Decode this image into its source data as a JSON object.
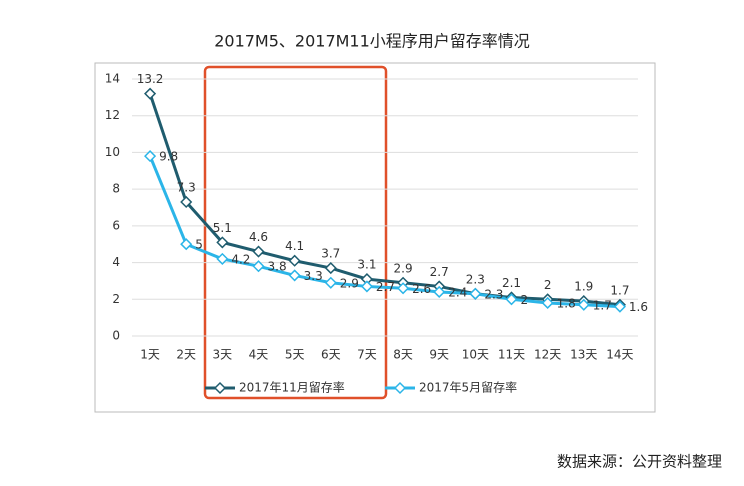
{
  "chart_data": {
    "type": "line",
    "title": "2017M5、2017M11小程序用户留存率情况",
    "categories": [
      "1天",
      "2天",
      "3天",
      "4天",
      "5天",
      "6天",
      "7天",
      "8天",
      "9天",
      "10天",
      "11天",
      "12天",
      "13天",
      "14天"
    ],
    "series": [
      {
        "name": "2017年11月留存率",
        "color": "#1f5c6e",
        "values": [
          13.2,
          7.3,
          5.1,
          4.6,
          4.1,
          3.7,
          3.1,
          2.9,
          2.7,
          2.3,
          2.1,
          2,
          1.9,
          1.7
        ]
      },
      {
        "name": "2017年5月留存率",
        "color": "#2bb5e8",
        "values": [
          9.8,
          5,
          4.2,
          3.8,
          3.3,
          2.9,
          2.7,
          2.6,
          2.4,
          2.3,
          2,
          1.8,
          1.7,
          1.6
        ]
      }
    ],
    "ylim": [
      0,
      14
    ],
    "yticks": [
      0,
      2,
      4,
      6,
      8,
      10,
      12,
      14
    ],
    "grid": true,
    "source": "数据来源：公开资料整理"
  }
}
